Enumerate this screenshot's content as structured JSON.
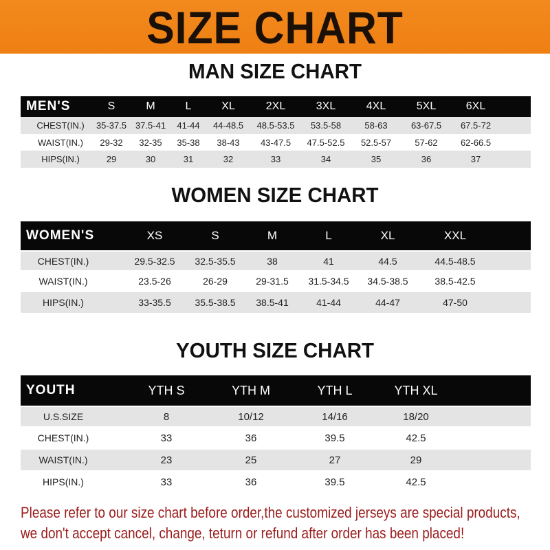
{
  "banner": {
    "title": "SIZE CHART"
  },
  "men": {
    "title": "MAN SIZE CHART",
    "header": [
      "MEN'S",
      "S",
      "M",
      "L",
      "XL",
      "2XL",
      "3XL",
      "4XL",
      "5XL",
      "6XL"
    ],
    "rows": [
      [
        "CHEST(IN.)",
        "35-37.5",
        "37.5-41",
        "41-44",
        "44-48.5",
        "48.5-53.5",
        "53.5-58",
        "58-63",
        "63-67.5",
        "67.5-72"
      ],
      [
        "WAIST(IN.)",
        "29-32",
        "32-35",
        "35-38",
        "38-43",
        "43-47.5",
        "47.5-52.5",
        "52.5-57",
        "57-62",
        "62-66.5"
      ],
      [
        "HIPS(IN.)",
        "29",
        "30",
        "31",
        "32",
        "33",
        "34",
        "35",
        "36",
        "37"
      ]
    ]
  },
  "women": {
    "title": "WOMEN SIZE CHART",
    "header": [
      "WOMEN'S",
      "XS",
      "S",
      "M",
      "L",
      "XL",
      "XXL"
    ],
    "rows": [
      [
        "CHEST(IN.)",
        "29.5-32.5",
        "32.5-35.5",
        "38",
        "41",
        "44.5",
        "44.5-48.5"
      ],
      [
        "WAIST(IN.)",
        "23.5-26",
        "26-29",
        "29-31.5",
        "31.5-34.5",
        "34.5-38.5",
        "38.5-42.5"
      ],
      [
        "HIPS(IN.)",
        "33-35.5",
        "35.5-38.5",
        "38.5-41",
        "41-44",
        "44-47",
        "47-50"
      ]
    ]
  },
  "youth": {
    "title": "YOUTH SIZE CHART",
    "header": [
      "YOUTH",
      "YTH S",
      "YTH M",
      "YTH L",
      "YTH XL"
    ],
    "rows": [
      [
        "U.S.SIZE",
        "8",
        "10/12",
        "14/16",
        "18/20"
      ],
      [
        "CHEST(IN.)",
        "33",
        "36",
        "39.5",
        "42.5"
      ],
      [
        "WAIST(IN.)",
        "23",
        "25",
        "27",
        "29"
      ],
      [
        "HIPS(IN.)",
        "33",
        "36",
        "39.5",
        "42.5"
      ]
    ]
  },
  "notice": {
    "line1": "Please refer to our size chart before order,the customized jerseys are special products,",
    "line2": "we don't accept cancel, change, teturn or refund after order has been placed!"
  },
  "colors": {
    "banner": "#ef7f12",
    "header_row": "#080808",
    "stripe": "#e4e4e4",
    "notice": "#9b1b1b"
  }
}
